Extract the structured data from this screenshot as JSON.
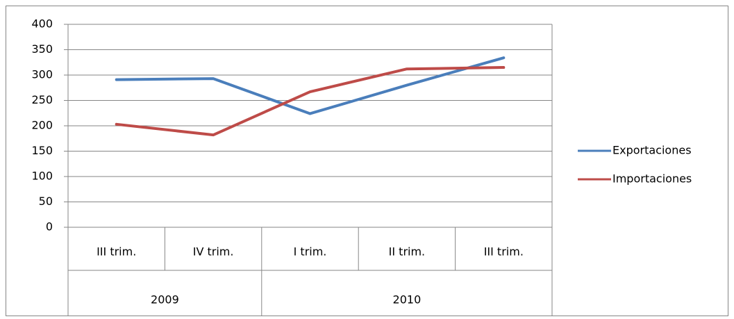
{
  "chart_data": {
    "type": "line",
    "categories": [
      "III trim.",
      "IV trim.",
      "I trim.",
      "II trim.",
      "III trim."
    ],
    "category_groups": [
      "2009",
      "2009",
      "2010",
      "2010",
      "2010"
    ],
    "series": [
      {
        "name": "Exportaciones",
        "color": "#4a7ebb",
        "values": [
          291,
          293,
          224,
          280,
          334
        ]
      },
      {
        "name": "Importaciones",
        "color": "#be4b48",
        "values": [
          203,
          182,
          267,
          312,
          315
        ]
      }
    ],
    "ylim": [
      0,
      400
    ],
    "yticks": [
      0,
      50,
      100,
      150,
      200,
      250,
      300,
      350,
      400
    ],
    "grid": true,
    "legend": "right"
  }
}
